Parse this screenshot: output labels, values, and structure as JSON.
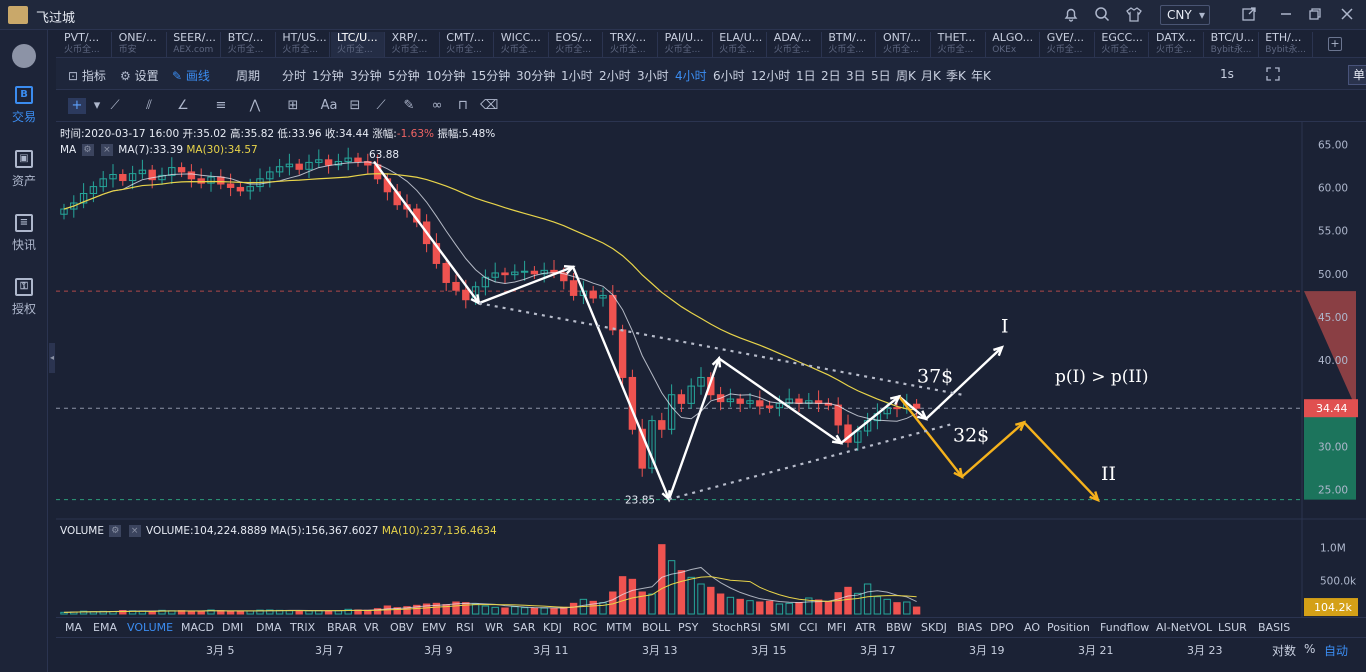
{
  "app": {
    "title": "飞过城",
    "currency": "CNY"
  },
  "sidebar": [
    {
      "label": "交易",
      "icon": "trade-icon",
      "glyph": "B",
      "active": true
    },
    {
      "label": "资产",
      "icon": "asset-icon",
      "glyph": "▣",
      "active": false
    },
    {
      "label": "快讯",
      "icon": "news-icon",
      "glyph": "≡",
      "active": false
    },
    {
      "label": "授权",
      "icon": "key-icon",
      "glyph": "⚿",
      "active": false
    }
  ],
  "tabs": [
    {
      "label": "PVT/...",
      "sub": "火币全..."
    },
    {
      "label": "ONE/...",
      "sub": "币安"
    },
    {
      "label": "SEER/...",
      "sub": "AEX.com"
    },
    {
      "label": "BTC/...",
      "sub": "火币全..."
    },
    {
      "label": "HT/US...",
      "sub": "火币全..."
    },
    {
      "label": "LTC/U...",
      "sub": "火币全...",
      "active": true
    },
    {
      "label": "XRP/...",
      "sub": "火币全..."
    },
    {
      "label": "CMT/...",
      "sub": "火币全..."
    },
    {
      "label": "WICC...",
      "sub": "火币全..."
    },
    {
      "label": "EOS/...",
      "sub": "火币全..."
    },
    {
      "label": "TRX/...",
      "sub": "火币全..."
    },
    {
      "label": "PAI/U...",
      "sub": "火币全..."
    },
    {
      "label": "ELA/U...",
      "sub": "火币全..."
    },
    {
      "label": "ADA/...",
      "sub": "火币全..."
    },
    {
      "label": "BTM/...",
      "sub": "火币全..."
    },
    {
      "label": "ONT/...",
      "sub": "火币全..."
    },
    {
      "label": "THET...",
      "sub": "火币全..."
    },
    {
      "label": "ALGO...",
      "sub": "OKEx"
    },
    {
      "label": "GVE/...",
      "sub": "火币全..."
    },
    {
      "label": "EGCC...",
      "sub": "火币全..."
    },
    {
      "label": "DATX...",
      "sub": "火币全..."
    },
    {
      "label": "BTC/U...",
      "sub": "Bybit永..."
    },
    {
      "label": "ETH/...",
      "sub": "Bybit永..."
    }
  ],
  "toolbar": {
    "indicators": "指标",
    "settings": "设置",
    "draw": "画线",
    "period_label": "周期",
    "periods": [
      "分时",
      "1分钟",
      "3分钟",
      "5分钟",
      "10分钟",
      "15分钟",
      "30分钟",
      "1小时",
      "2小时",
      "3小时",
      "4小时",
      "6小时",
      "12小时",
      "1日",
      "2日",
      "3日",
      "5日",
      "周K",
      "月K",
      "季K",
      "年K"
    ],
    "active_period": "4小时",
    "refresh": "1s",
    "window_mode": "单窗口"
  },
  "info": {
    "time": "时间:2020-03-17 16:00",
    "open": "开:35.02",
    "high": "高:35.82",
    "low": "低:33.96",
    "close": "收:34.44",
    "change_label": "涨幅:",
    "change": "-1.63%",
    "amplitude": "振幅:5.48%"
  },
  "ma": {
    "name": "MA",
    "ma7": "MA(7):33.39",
    "ma30": "MA(30):34.57"
  },
  "volume_info": {
    "name": "VOLUME",
    "volume": "VOLUME:104,224.8889",
    "ma5": "MA(5):156,367.6027",
    "ma10": "MA(10):237,136.4634"
  },
  "annotations": {
    "high_marker": "63.88",
    "low_marker": "23.85",
    "label_37": "37$",
    "label_32": "32$",
    "scenario_1": "I",
    "scenario_2": "II",
    "probability": "p(I) > p(II)"
  },
  "price_axis": {
    "ticks": [
      "65.00",
      "60.00",
      "55.00",
      "50.00",
      "45.00",
      "40.00",
      "35.00",
      "30.00",
      "25.00"
    ],
    "current": "34.44"
  },
  "volume_axis": {
    "ticks": [
      "1.0M",
      "500.0k"
    ],
    "current": "104.2k"
  },
  "indicators": [
    "MA",
    "EMA",
    "VOLUME",
    "MACD",
    "DMI",
    "DMA",
    "TRIX",
    "BRAR",
    "VR",
    "OBV",
    "EMV",
    "RSI",
    "WR",
    "SAR",
    "KDJ",
    "ROC",
    "MTM",
    "BOLL",
    "PSY",
    "StochRSI",
    "SMI",
    "CCI",
    "MFI",
    "ATR",
    "BBW",
    "SKDJ",
    "BIAS",
    "DPO",
    "AO",
    "Position",
    "Fundflow",
    "AI-NetVOL",
    "LSUR",
    "BASIS"
  ],
  "active_indicator": "VOLUME",
  "dates": [
    "3月 5",
    "3月 7",
    "3月 9",
    "3月 11",
    "3月 13",
    "3月 15",
    "3月 17",
    "3月 19",
    "3月 21",
    "3月 23"
  ],
  "scale": {
    "log": "对数",
    "percent": "%",
    "auto": "自动"
  },
  "colors": {
    "up": "#26a69a",
    "down": "#ef5350",
    "ma7": "#e8ecf5",
    "ma30": "#e8d44a",
    "accent": "#3b8cf0",
    "scenario_2": "#f5b21c",
    "current_price": "#e05050",
    "volume_current": "#d4a017"
  },
  "chart_data": {
    "type": "candlestick",
    "symbol": "LTC/USDT",
    "interval": "4小时",
    "ylim": [
      23,
      67
    ],
    "close": [
      57.5,
      58.2,
      59.3,
      60.1,
      61.0,
      61.5,
      60.8,
      61.6,
      62.0,
      60.9,
      61.4,
      62.3,
      61.8,
      61.0,
      60.5,
      61.2,
      60.4,
      60.0,
      59.6,
      60.1,
      61.0,
      61.8,
      62.4,
      62.7,
      62.1,
      62.9,
      63.2,
      62.6,
      63.0,
      63.4,
      63.0,
      62.6,
      61.0,
      59.5,
      58.0,
      57.5,
      56.0,
      53.5,
      51.2,
      49.0,
      48.1,
      47.0,
      48.5,
      49.6,
      50.1,
      49.9,
      50.2,
      50.3,
      50.0,
      50.4,
      50.1,
      49.2,
      47.5,
      48.0,
      47.2,
      47.5,
      43.5,
      38.0,
      32.0,
      27.5,
      33.0,
      32.0,
      36.0,
      35.0,
      37.0,
      38.0,
      36.0,
      35.2,
      35.5,
      35.0,
      35.3,
      34.7,
      34.5,
      35.0,
      35.5,
      35.0,
      35.3,
      35.0,
      34.8,
      32.5,
      30.5,
      31.8,
      33.0,
      33.8,
      34.5,
      34.4,
      34.9,
      34.44
    ],
    "volume_k": [
      25,
      30,
      42,
      35,
      40,
      38,
      52,
      47,
      45,
      40,
      55,
      48,
      50,
      43,
      40,
      60,
      50,
      42,
      38,
      45,
      58,
      60,
      55,
      50,
      45,
      48,
      52,
      46,
      50,
      70,
      60,
      55,
      80,
      120,
      95,
      110,
      130,
      150,
      160,
      140,
      180,
      170,
      150,
      120,
      100,
      90,
      110,
      95,
      85,
      90,
      80,
      100,
      160,
      220,
      190,
      170,
      330,
      560,
      520,
      330,
      300,
      1040,
      800,
      650,
      550,
      450,
      400,
      300,
      250,
      220,
      200,
      180,
      190,
      150,
      160,
      170,
      240,
      210,
      180,
      320,
      400,
      310,
      450,
      260,
      220,
      170,
      180,
      104.2
    ]
  }
}
